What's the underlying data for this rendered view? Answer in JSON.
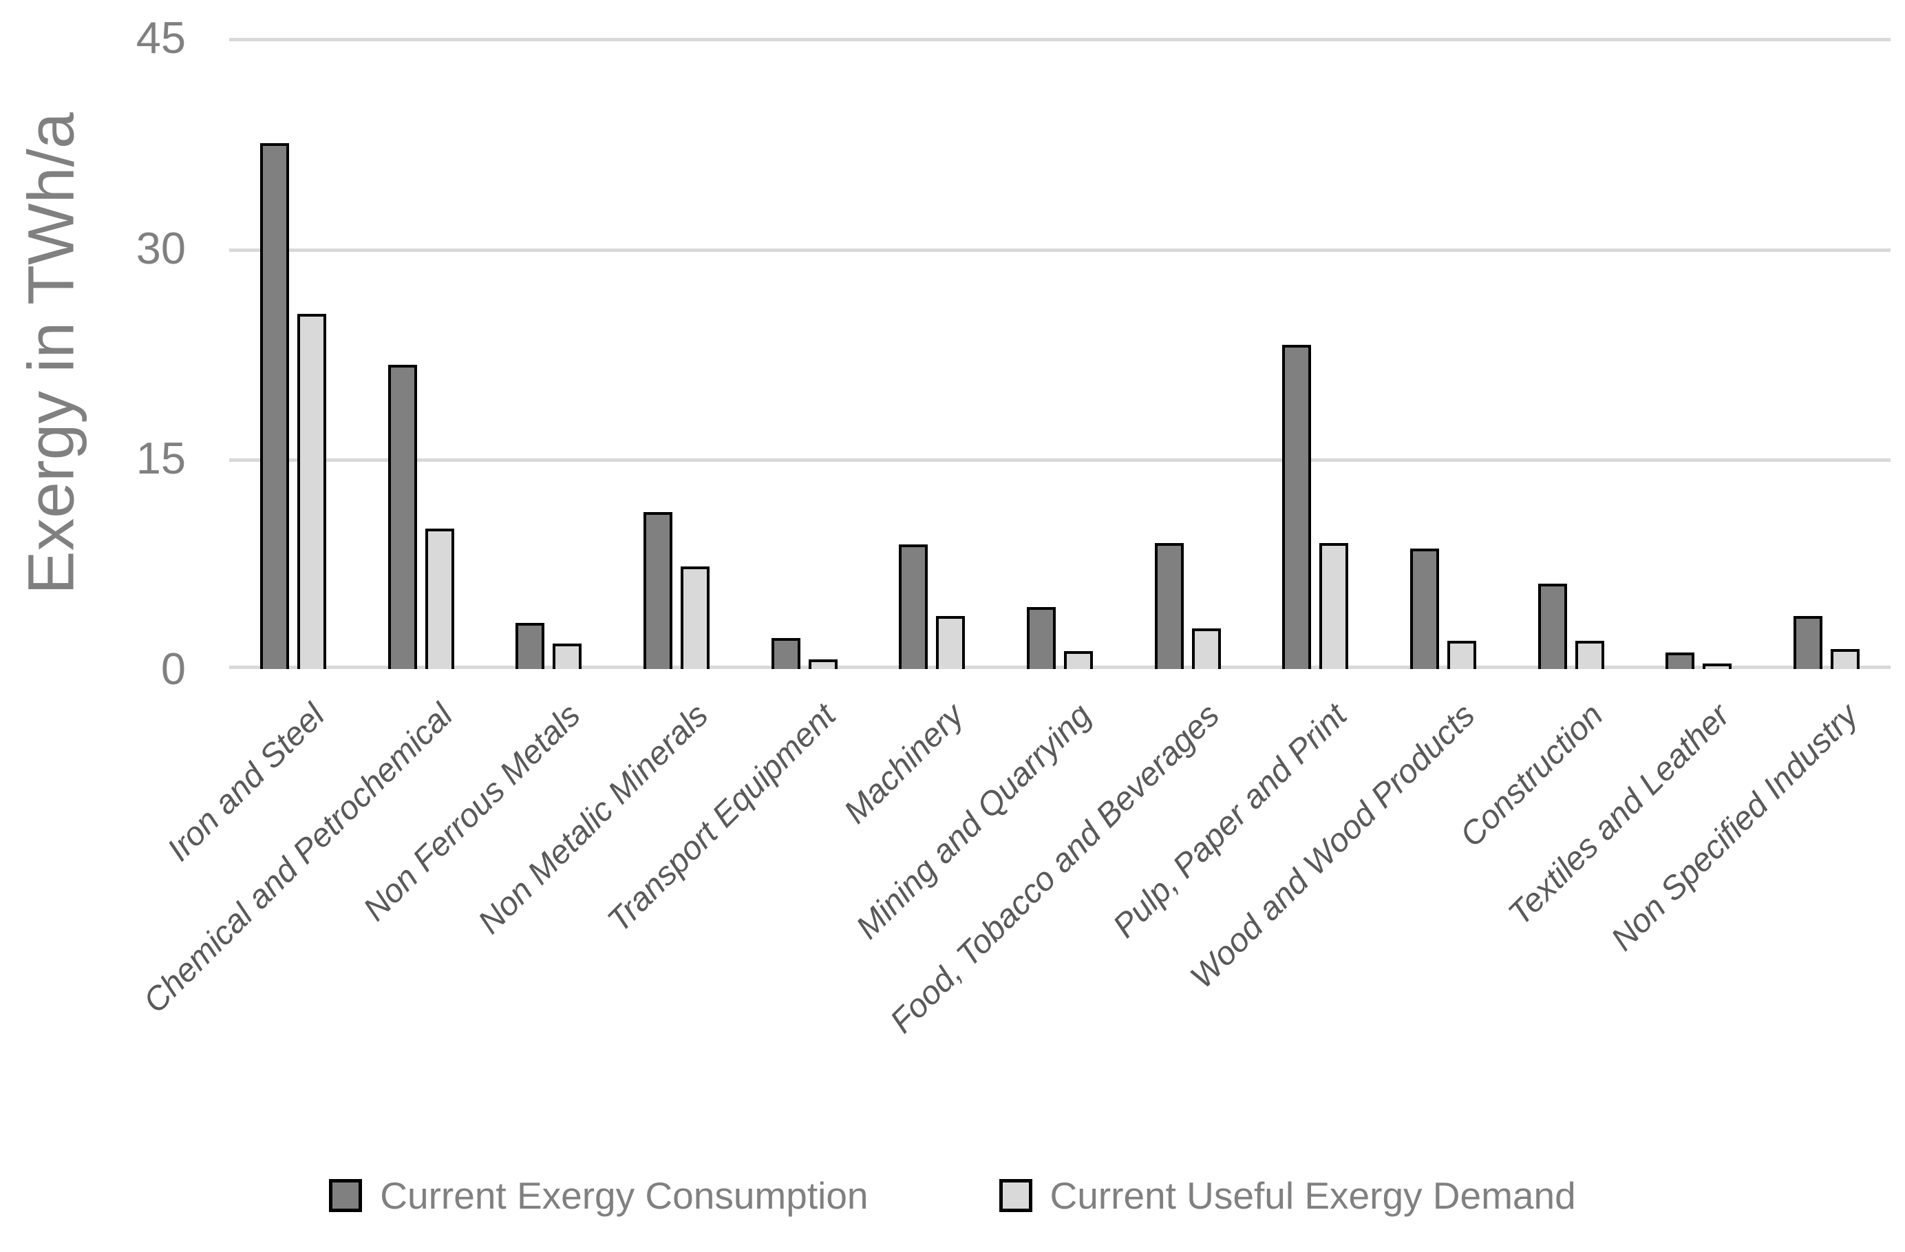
{
  "chart_data": {
    "type": "bar",
    "title": "",
    "xlabel": "",
    "ylabel": "Exergy in TWh/a",
    "ylim": [
      0,
      45
    ],
    "yticks": [
      45,
      30,
      15,
      0
    ],
    "grid": true,
    "legend_position": "bottom-center",
    "background_color": "#ffffff",
    "gridline_color": "#d9d9d9",
    "axis_text_color": "#808080",
    "category_text_color": "#595959",
    "bar_border_color": "#000000",
    "categories": [
      "Iron and Steel",
      "Chemical and Petrochemical",
      "Non Ferrous Metals",
      "Non Metalic Minerals",
      "Transport Equipment",
      "Machinery",
      "Mining and Quarrying",
      "Food, Tobacco and Beverages",
      "Pulp, Paper and Print",
      "Wood and Wood Products",
      "Construction",
      "Textiles and Leather",
      "Non Specified Industry"
    ],
    "series": [
      {
        "name": "Current Exergy Consumption",
        "color": "#808080",
        "values": [
          37.5,
          21.7,
          3.3,
          11.2,
          2.2,
          8.9,
          4.4,
          9.0,
          23.1,
          8.6,
          6.1,
          1.2,
          3.8
        ]
      },
      {
        "name": "Current Useful Exergy Demand",
        "color": "#d9d9d9",
        "values": [
          25.3,
          10.0,
          1.8,
          7.3,
          0.7,
          3.8,
          1.3,
          2.9,
          9.0,
          2.0,
          2.0,
          0.4,
          1.4
        ]
      }
    ]
  }
}
